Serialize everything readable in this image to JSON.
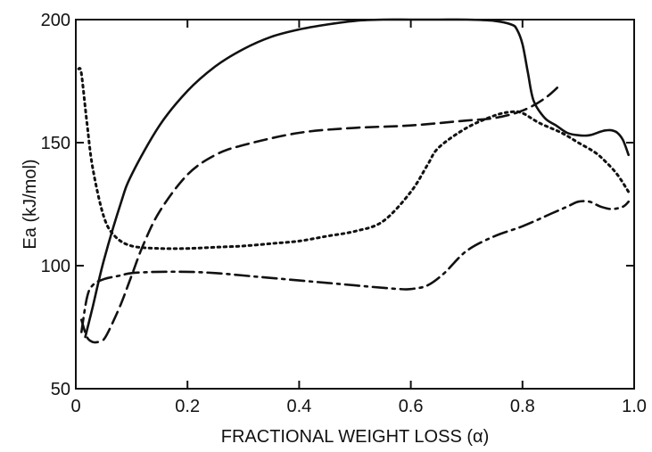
{
  "chart_data": {
    "type": "line",
    "title": "",
    "xlabel": "FRACTIONAL WEIGHT LOSS (α)",
    "ylabel": "Ea (kJ/mol)",
    "xlim": [
      0,
      1.0
    ],
    "ylim": [
      50,
      200
    ],
    "xticks": [
      0,
      0.2,
      0.4,
      0.6,
      0.8,
      1.0
    ],
    "xtick_labels": [
      "0",
      "0.2",
      "0.4",
      "0.6",
      "0.8",
      "1.0"
    ],
    "yticks": [
      50,
      100,
      150,
      200
    ],
    "ytick_labels": [
      "50",
      "100",
      "150",
      "200"
    ],
    "grid": false,
    "legend": "none",
    "series": [
      {
        "style": "solid",
        "color": "#111111",
        "x": [
          0.017,
          0.03,
          0.05,
          0.08,
          0.1,
          0.15,
          0.2,
          0.25,
          0.3,
          0.35,
          0.4,
          0.45,
          0.5,
          0.55,
          0.6,
          0.65,
          0.7,
          0.75,
          0.78,
          0.79,
          0.8,
          0.81,
          0.82,
          0.84,
          0.86,
          0.88,
          0.9,
          0.92,
          0.94,
          0.95,
          0.96,
          0.97,
          0.98,
          0.99
        ],
        "y": [
          71,
          83,
          102,
          125,
          137,
          157,
          171,
          181,
          188,
          193,
          196,
          198,
          199.5,
          200,
          200,
          200,
          200,
          199.5,
          198,
          196,
          190,
          178,
          167,
          160,
          157,
          154,
          153,
          153,
          154.5,
          155,
          155,
          154,
          151,
          145
        ]
      },
      {
        "style": "dashed",
        "color": "#111111",
        "x": [
          0.01,
          0.02,
          0.03,
          0.04,
          0.05,
          0.06,
          0.08,
          0.1,
          0.12,
          0.15,
          0.2,
          0.25,
          0.3,
          0.4,
          0.5,
          0.6,
          0.7,
          0.75,
          0.8,
          0.84,
          0.87
        ],
        "y": [
          78,
          71,
          69,
          69,
          70,
          74,
          84,
          96,
          108,
          122,
          137,
          145,
          149,
          154,
          156,
          157,
          159,
          160,
          163,
          168,
          174
        ]
      },
      {
        "style": "dotted",
        "color": "#111111",
        "x": [
          0.005,
          0.01,
          0.02,
          0.03,
          0.05,
          0.07,
          0.1,
          0.15,
          0.2,
          0.25,
          0.3,
          0.35,
          0.4,
          0.45,
          0.5,
          0.55,
          0.6,
          0.63,
          0.65,
          0.7,
          0.75,
          0.78,
          0.8,
          0.83,
          0.87,
          0.9,
          0.93,
          0.95,
          0.97,
          0.99
        ],
        "y": [
          180,
          178,
          158,
          140,
          120,
          112,
          108,
          107,
          107,
          107.5,
          108,
          109,
          110,
          112,
          114,
          118,
          130,
          141,
          148,
          156,
          161,
          162.5,
          162,
          158,
          154,
          150,
          146,
          142,
          137,
          130
        ]
      },
      {
        "style": "dash-dot",
        "color": "#111111",
        "x": [
          0.01,
          0.02,
          0.03,
          0.05,
          0.08,
          0.1,
          0.15,
          0.2,
          0.25,
          0.3,
          0.35,
          0.4,
          0.45,
          0.5,
          0.55,
          0.58,
          0.6,
          0.63,
          0.66,
          0.7,
          0.75,
          0.8,
          0.85,
          0.88,
          0.9,
          0.92,
          0.94,
          0.96,
          0.98,
          0.99
        ],
        "y": [
          73,
          87,
          92,
          94.5,
          96,
          97,
          97.5,
          97.5,
          97,
          96,
          95,
          94,
          93,
          92,
          91,
          90.5,
          90.5,
          92,
          97,
          106,
          112,
          116,
          121,
          124,
          126,
          126,
          124,
          123,
          124,
          126
        ]
      }
    ]
  }
}
